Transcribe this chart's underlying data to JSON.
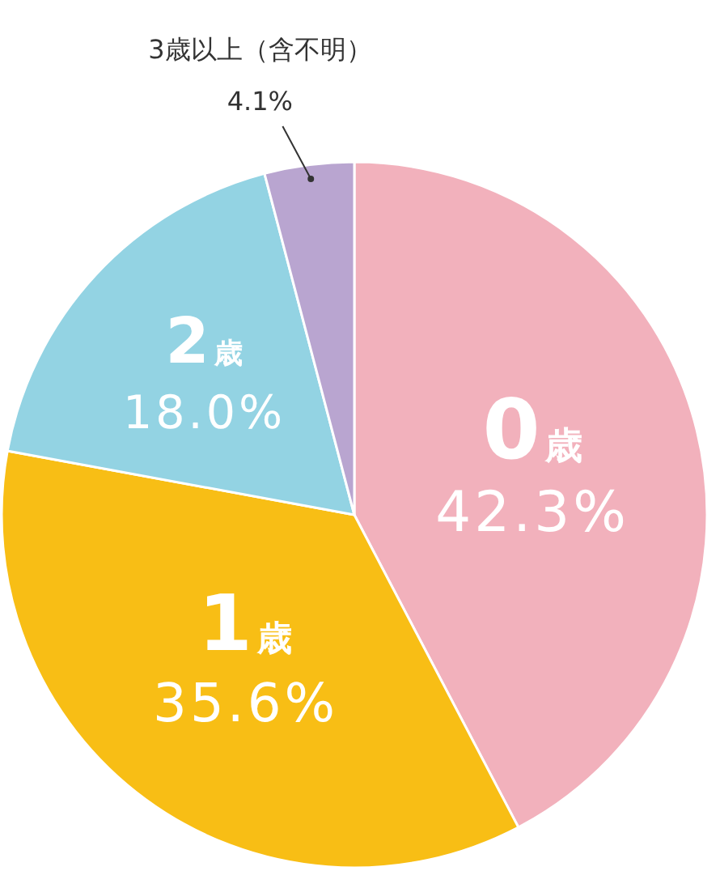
{
  "chart_data": {
    "type": "pie",
    "categories": [
      "0歳",
      "1歳",
      "2歳",
      "3歳以上（含不明）"
    ],
    "values": [
      42.3,
      35.6,
      18.0,
      4.1
    ],
    "value_labels": [
      "42.3%",
      "35.6%",
      "18.0%",
      "4.1%"
    ],
    "colors": [
      "#f2b1bc",
      "#f8be15",
      "#93d3e3",
      "#b9a5d0"
    ]
  }
}
